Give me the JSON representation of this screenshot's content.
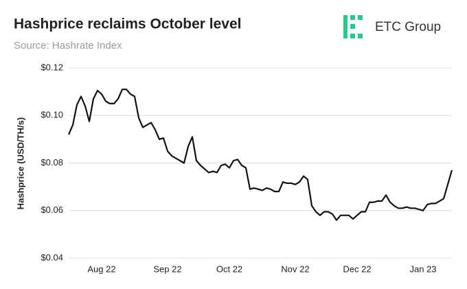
{
  "chart_data": {
    "type": "line",
    "title": "Hashprice reclaims October level",
    "subtitle": "Source: Hashrate Index",
    "logo": "ETC Group",
    "y_label": "Hashprice (USD/TH/s)",
    "categories": [
      null,
      null,
      null,
      null,
      null,
      null,
      null,
      null,
      "Aug 22",
      null,
      null,
      null,
      null,
      null,
      null,
      null,
      null,
      null,
      null,
      null,
      null,
      null,
      null,
      null,
      "Sep 22",
      null,
      null,
      null,
      null,
      null,
      null,
      null,
      null,
      null,
      null,
      null,
      null,
      null,
      null,
      "Oct 22",
      null,
      null,
      null,
      null,
      null,
      null,
      null,
      null,
      null,
      null,
      null,
      null,
      null,
      null,
      null,
      "Nov 22",
      null,
      null,
      null,
      null,
      null,
      null,
      null,
      null,
      null,
      null,
      null,
      null,
      null,
      null,
      "Dec 22",
      null,
      null,
      null,
      null,
      null,
      null,
      null,
      null,
      null,
      null,
      null,
      null,
      null,
      null,
      null,
      "Jan 23",
      null,
      null,
      null,
      null,
      null,
      null,
      null
    ],
    "series": [
      {
        "name": "Hashprice",
        "color": "#111111",
        "values": [
          0.092,
          0.096,
          0.1045,
          0.108,
          0.104,
          0.0975,
          0.107,
          0.1105,
          0.109,
          0.106,
          0.105,
          0.105,
          0.107,
          0.111,
          0.111,
          0.109,
          0.108,
          0.099,
          0.095,
          0.096,
          0.097,
          0.094,
          0.09,
          0.0905,
          0.085,
          0.083,
          0.082,
          0.081,
          0.08,
          0.087,
          0.091,
          0.081,
          0.079,
          0.0775,
          0.076,
          0.0765,
          0.076,
          0.079,
          0.0795,
          0.078,
          0.081,
          0.0815,
          0.079,
          0.078,
          0.069,
          0.0695,
          0.069,
          0.0685,
          0.0695,
          0.069,
          0.068,
          0.068,
          0.072,
          0.0715,
          0.0715,
          0.071,
          0.072,
          0.0745,
          0.073,
          0.062,
          0.0595,
          0.058,
          0.0595,
          0.0595,
          0.0585,
          0.056,
          0.058,
          0.058,
          0.058,
          0.0565,
          0.058,
          0.0595,
          0.0595,
          0.0635,
          0.0635,
          0.064,
          0.064,
          0.0665,
          0.0635,
          0.062,
          0.061,
          0.061,
          0.0615,
          0.061,
          0.061,
          0.0605,
          0.06,
          0.0625,
          0.063,
          0.063,
          0.064,
          0.065,
          0.071,
          0.077
        ]
      }
    ],
    "ylim": [
      0.04,
      0.12
    ],
    "yticks": [
      {
        "value": 0.04,
        "label": "$0.04"
      },
      {
        "value": 0.06,
        "label": "$0.06"
      },
      {
        "value": 0.08,
        "label": "$0.08"
      },
      {
        "value": 0.1,
        "label": "$0.10"
      },
      {
        "value": 0.12,
        "label": "$0.12"
      }
    ],
    "grid": true
  }
}
